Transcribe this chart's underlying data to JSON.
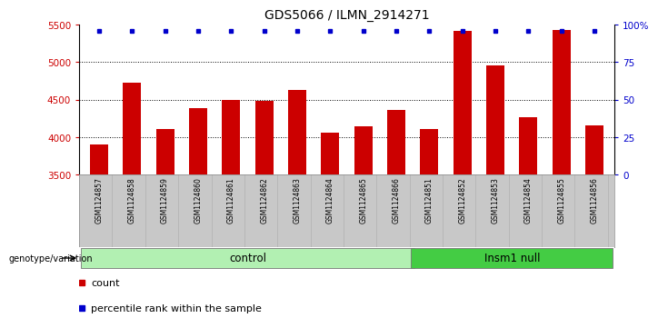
{
  "title": "GDS5066 / ILMN_2914271",
  "samples": [
    "GSM1124857",
    "GSM1124858",
    "GSM1124859",
    "GSM1124860",
    "GSM1124861",
    "GSM1124862",
    "GSM1124863",
    "GSM1124864",
    "GSM1124865",
    "GSM1124866",
    "GSM1124851",
    "GSM1124852",
    "GSM1124853",
    "GSM1124854",
    "GSM1124855",
    "GSM1124856"
  ],
  "counts": [
    3900,
    4720,
    4110,
    4380,
    4500,
    4480,
    4630,
    4060,
    4140,
    4360,
    4110,
    5420,
    4950,
    4260,
    5430,
    4150
  ],
  "groups": [
    "control",
    "control",
    "control",
    "control",
    "control",
    "control",
    "control",
    "control",
    "control",
    "control",
    "Insm1 null",
    "Insm1 null",
    "Insm1 null",
    "Insm1 null",
    "Insm1 null",
    "Insm1 null"
  ],
  "bar_color": "#CC0000",
  "dot_color": "#0000CC",
  "ylim_left": [
    3500,
    5500
  ],
  "ylim_right": [
    0,
    100
  ],
  "yticks_left": [
    3500,
    4000,
    4500,
    5000,
    5500
  ],
  "yticks_right": [
    0,
    25,
    50,
    75,
    100
  ],
  "ytick_labels_right": [
    "0",
    "25",
    "50",
    "75",
    "100%"
  ],
  "grid_values": [
    4000,
    4500,
    5000
  ],
  "left_axis_color": "#CC0000",
  "right_axis_color": "#0000CC",
  "tick_label_bg": "#c8c8c8",
  "control_color": "#b2f0b2",
  "insm1_color": "#44cc44",
  "legend_count_label": "count",
  "legend_pct_label": "percentile rank within the sample",
  "genotype_label": "genotype/variation",
  "control_label": "control",
  "insm1_label": "Insm1 null"
}
